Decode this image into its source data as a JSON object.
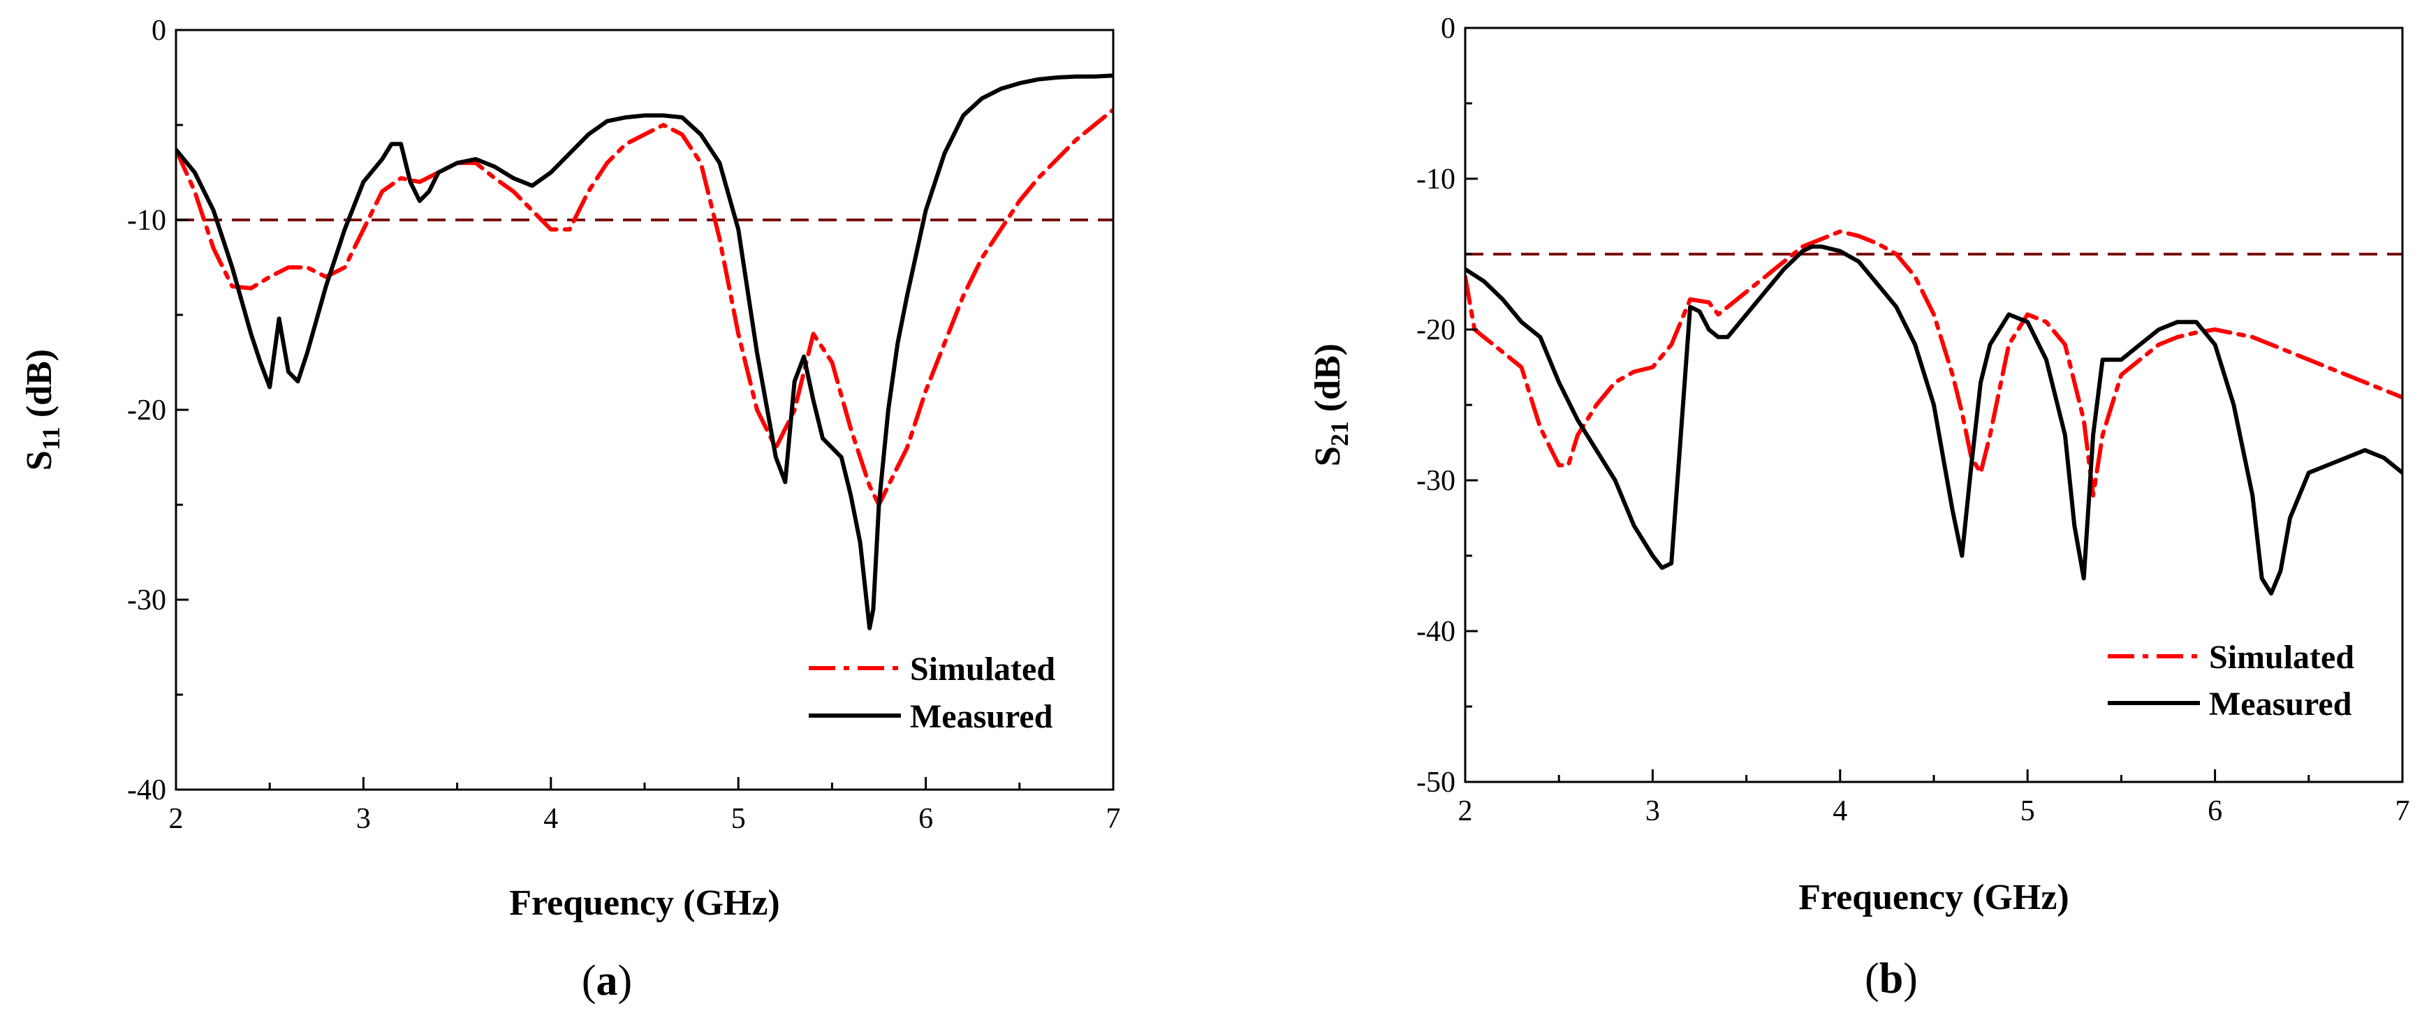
{
  "figure_labels": {
    "a": "a",
    "b": "b"
  },
  "colors": {
    "simulated": "#ff0000",
    "measured": "#000000",
    "threshold": "#7a1010",
    "axis": "#000000"
  },
  "chart_data": [
    {
      "type": "line",
      "panel": "a",
      "panel_label": "a",
      "title": "",
      "xlabel": "Frequency (GHz)",
      "ylabel_main": "S",
      "ylabel_sub": "11",
      "ylabel_tail": " (dB)",
      "xlim": [
        2,
        7
      ],
      "ylim": [
        -40,
        0
      ],
      "xticks": [
        2,
        3,
        4,
        5,
        6,
        7
      ],
      "xtick_labels": [
        "2",
        "3",
        "4",
        "5",
        "6",
        "7"
      ],
      "yticks": [
        0,
        -10,
        -20,
        -30,
        -40
      ],
      "ytick_labels": [
        "0",
        "-10",
        "-20",
        "-30",
        "-40"
      ],
      "threshold": -10,
      "legend_position": "bottom-right",
      "series": [
        {
          "name": "Simulated",
          "style": "dash-dot",
          "x": [
            2.0,
            2.1,
            2.2,
            2.3,
            2.4,
            2.5,
            2.6,
            2.7,
            2.8,
            2.9,
            3.0,
            3.1,
            3.2,
            3.3,
            3.4,
            3.5,
            3.6,
            3.7,
            3.8,
            3.9,
            4.0,
            4.1,
            4.2,
            4.3,
            4.4,
            4.5,
            4.6,
            4.7,
            4.8,
            4.9,
            5.0,
            5.1,
            5.2,
            5.3,
            5.4,
            5.5,
            5.6,
            5.7,
            5.75,
            5.8,
            5.9,
            6.0,
            6.1,
            6.2,
            6.3,
            6.4,
            6.5,
            6.6,
            6.7,
            6.8,
            6.9,
            7.0
          ],
          "values": [
            -6.3,
            -8.5,
            -11.5,
            -13.5,
            -13.6,
            -13.0,
            -12.5,
            -12.5,
            -13.0,
            -12.5,
            -10.5,
            -8.5,
            -7.8,
            -8.0,
            -7.5,
            -7.0,
            -7.0,
            -7.8,
            -8.5,
            -9.5,
            -10.5,
            -10.5,
            -8.5,
            -7.0,
            -6.0,
            -5.5,
            -5.0,
            -5.5,
            -7.0,
            -11.0,
            -16.0,
            -20.0,
            -22.0,
            -20.0,
            -16.0,
            -17.5,
            -21.0,
            -24.0,
            -25.0,
            -24.0,
            -22.0,
            -19.0,
            -16.5,
            -14.0,
            -12.0,
            -10.5,
            -9.0,
            -7.8,
            -6.8,
            -5.8,
            -5.0,
            -4.2
          ]
        },
        {
          "name": "Measured",
          "style": "solid",
          "x": [
            2.0,
            2.1,
            2.2,
            2.3,
            2.4,
            2.45,
            2.5,
            2.55,
            2.6,
            2.65,
            2.7,
            2.8,
            2.9,
            3.0,
            3.1,
            3.15,
            3.2,
            3.25,
            3.3,
            3.35,
            3.4,
            3.5,
            3.6,
            3.7,
            3.8,
            3.9,
            4.0,
            4.1,
            4.2,
            4.3,
            4.4,
            4.5,
            4.6,
            4.7,
            4.8,
            4.9,
            5.0,
            5.1,
            5.2,
            5.25,
            5.3,
            5.35,
            5.4,
            5.45,
            5.5,
            5.55,
            5.6,
            5.65,
            5.7,
            5.72,
            5.75,
            5.8,
            5.85,
            5.9,
            6.0,
            6.1,
            6.2,
            6.3,
            6.4,
            6.5,
            6.6,
            6.7,
            6.8,
            6.9,
            7.0
          ],
          "values": [
            -6.3,
            -7.5,
            -9.5,
            -12.5,
            -16.0,
            -17.5,
            -18.8,
            -15.2,
            -18.0,
            -18.5,
            -17.0,
            -13.5,
            -10.5,
            -8.0,
            -6.8,
            -6.0,
            -6.0,
            -8.0,
            -9.0,
            -8.5,
            -7.5,
            -7.0,
            -6.8,
            -7.2,
            -7.8,
            -8.2,
            -7.5,
            -6.5,
            -5.5,
            -4.8,
            -4.6,
            -4.5,
            -4.5,
            -4.6,
            -5.5,
            -7.0,
            -10.5,
            -17.0,
            -22.5,
            -23.8,
            -18.5,
            -17.2,
            -19.5,
            -21.5,
            -22.0,
            -22.5,
            -24.5,
            -27.0,
            -31.5,
            -30.5,
            -25.0,
            -20.0,
            -16.5,
            -14.0,
            -9.5,
            -6.5,
            -4.5,
            -3.6,
            -3.1,
            -2.8,
            -2.6,
            -2.5,
            -2.45,
            -2.45,
            -2.4
          ]
        }
      ]
    },
    {
      "type": "line",
      "panel": "b",
      "panel_label": "b",
      "title": "",
      "xlabel": "Frequency (GHz)",
      "ylabel_main": "S",
      "ylabel_sub": "21",
      "ylabel_tail": " (dB)",
      "xlim": [
        2,
        7
      ],
      "ylim": [
        -50,
        0
      ],
      "xticks": [
        2,
        3,
        4,
        5,
        6,
        7
      ],
      "xtick_labels": [
        "2",
        "3",
        "4",
        "5",
        "6",
        "7"
      ],
      "yticks": [
        0,
        -10,
        -20,
        -30,
        -40,
        -50
      ],
      "ytick_labels": [
        "0",
        "-10",
        "-20",
        "-30",
        "-40",
        "-50"
      ],
      "threshold": -15,
      "legend_position": "bottom-right",
      "series": [
        {
          "name": "Simulated",
          "style": "dash-dot",
          "x": [
            2.0,
            2.05,
            2.1,
            2.2,
            2.3,
            2.4,
            2.5,
            2.55,
            2.6,
            2.7,
            2.8,
            2.9,
            3.0,
            3.1,
            3.2,
            3.3,
            3.35,
            3.4,
            3.5,
            3.6,
            3.7,
            3.8,
            3.9,
            4.0,
            4.1,
            4.2,
            4.3,
            4.4,
            4.5,
            4.6,
            4.65,
            4.7,
            4.75,
            4.8,
            4.9,
            5.0,
            5.1,
            5.2,
            5.3,
            5.35,
            5.4,
            5.5,
            5.6,
            5.7,
            5.8,
            5.9,
            6.0,
            6.2,
            6.4,
            6.6,
            6.8,
            7.0
          ],
          "values": [
            -16.5,
            -20.0,
            -20.5,
            -21.5,
            -22.5,
            -26.5,
            -29.0,
            -29.0,
            -27.0,
            -25.0,
            -23.5,
            -22.8,
            -22.5,
            -21.0,
            -18.0,
            -18.2,
            -19.0,
            -18.5,
            -17.5,
            -16.5,
            -15.5,
            -14.5,
            -14.0,
            -13.5,
            -13.8,
            -14.3,
            -15.0,
            -16.5,
            -19.0,
            -23.0,
            -25.5,
            -28.5,
            -29.5,
            -27.0,
            -21.0,
            -19.0,
            -19.5,
            -21.0,
            -26.0,
            -31.0,
            -27.0,
            -23.0,
            -22.0,
            -21.0,
            -20.5,
            -20.2,
            -20.0,
            -20.5,
            -21.5,
            -22.5,
            -23.5,
            -24.5
          ]
        },
        {
          "name": "Measured",
          "style": "solid",
          "x": [
            2.0,
            2.1,
            2.2,
            2.3,
            2.4,
            2.5,
            2.6,
            2.7,
            2.8,
            2.9,
            3.0,
            3.05,
            3.1,
            3.15,
            3.2,
            3.25,
            3.3,
            3.35,
            3.4,
            3.5,
            3.6,
            3.7,
            3.8,
            3.85,
            3.9,
            4.0,
            4.1,
            4.2,
            4.3,
            4.4,
            4.5,
            4.6,
            4.65,
            4.7,
            4.75,
            4.8,
            4.9,
            5.0,
            5.1,
            5.2,
            5.25,
            5.3,
            5.35,
            5.4,
            5.5,
            5.6,
            5.7,
            5.8,
            5.9,
            6.0,
            6.1,
            6.2,
            6.25,
            6.3,
            6.35,
            6.4,
            6.5,
            6.6,
            6.7,
            6.8,
            6.9,
            7.0
          ],
          "values": [
            -16.0,
            -16.8,
            -18.0,
            -19.5,
            -20.5,
            -23.5,
            -26.0,
            -28.0,
            -30.0,
            -33.0,
            -35.0,
            -35.8,
            -35.5,
            -27.0,
            -18.5,
            -18.8,
            -20.0,
            -20.5,
            -20.5,
            -19.0,
            -17.5,
            -16.0,
            -14.8,
            -14.5,
            -14.5,
            -14.8,
            -15.5,
            -17.0,
            -18.5,
            -21.0,
            -25.0,
            -32.0,
            -35.0,
            -29.0,
            -23.5,
            -21.0,
            -19.0,
            -19.5,
            -22.0,
            -27.0,
            -33.0,
            -36.5,
            -27.0,
            -22.0,
            -22.0,
            -21.0,
            -20.0,
            -19.5,
            -19.5,
            -21.0,
            -25.0,
            -31.0,
            -36.5,
            -37.5,
            -36.0,
            -32.5,
            -29.5,
            -29.0,
            -28.5,
            -28.0,
            -28.5,
            -29.5
          ]
        }
      ]
    }
  ]
}
